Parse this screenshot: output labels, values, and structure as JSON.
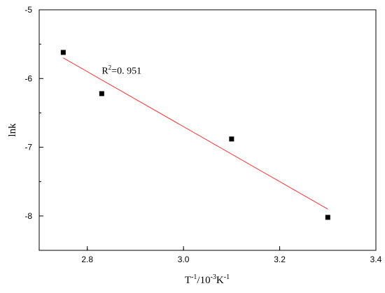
{
  "chart_data": {
    "type": "scatter",
    "xlabel": "T",
    "xlabel_sup1": "-1",
    "xlabel_mid": "/10",
    "xlabel_sup2": "-3",
    "xlabel_unit": "K",
    "xlabel_sup3": "-1",
    "ylabel": "lnk",
    "xlim": [
      2.7,
      3.4
    ],
    "ylim": [
      -8.5,
      -5.0
    ],
    "xticks": [
      2.8,
      3.0,
      3.2,
      3.4
    ],
    "xtick_labels": [
      "2.8",
      "3.0",
      "3.2",
      "3.4"
    ],
    "yticks": [
      -8,
      -7,
      -6,
      -5
    ],
    "ytick_labels": [
      "-8",
      "-7",
      "-6",
      "-5"
    ],
    "points": [
      {
        "x": 2.75,
        "y": -5.62
      },
      {
        "x": 2.83,
        "y": -6.22
      },
      {
        "x": 3.1,
        "y": -6.88
      },
      {
        "x": 3.3,
        "y": -8.02
      }
    ],
    "fit_line": {
      "x": [
        2.75,
        3.3
      ],
      "y": [
        -5.7,
        -7.9
      ],
      "color": "#ff3333"
    },
    "annotation": {
      "text_prefix": "R",
      "text_sup": "2",
      "text_suffix": "=0. 951",
      "x": 2.83,
      "y": -5.93
    },
    "grid": false,
    "marker_color": "#000000"
  }
}
